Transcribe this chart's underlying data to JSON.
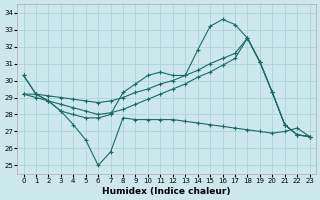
{
  "xlabel": "Humidex (Indice chaleur)",
  "bg_color": "#cce8ec",
  "grid_color": "#b0d8dc",
  "line_color": "#1a6b62",
  "xlim": [
    -0.5,
    23.5
  ],
  "ylim": [
    24.5,
    34.5
  ],
  "yticks": [
    25,
    26,
    27,
    28,
    29,
    30,
    31,
    32,
    33,
    34
  ],
  "xticks": [
    0,
    1,
    2,
    3,
    4,
    5,
    6,
    7,
    8,
    9,
    10,
    11,
    12,
    13,
    14,
    15,
    16,
    17,
    18,
    19,
    20,
    21,
    22,
    23
  ],
  "curves": [
    {
      "x": [
        0,
        1,
        2,
        3,
        4,
        5,
        6,
        7,
        8,
        9,
        10,
        11,
        12,
        13,
        14,
        15,
        16,
        17,
        18,
        19,
        20,
        21,
        22,
        23
      ],
      "y": [
        30.3,
        29.2,
        28.8,
        28.2,
        27.4,
        26.5,
        25.0,
        25.8,
        27.8,
        27.7,
        27.7,
        27.7,
        27.7,
        27.6,
        27.5,
        27.4,
        27.3,
        27.2,
        27.1,
        27.0,
        26.9,
        27.0,
        27.2,
        26.7
      ]
    },
    {
      "x": [
        0,
        1,
        2,
        3,
        4,
        5,
        6,
        7,
        8,
        9,
        10,
        11,
        12,
        13,
        14,
        15,
        16,
        17,
        18,
        19,
        20,
        21,
        22,
        23
      ],
      "y": [
        30.3,
        29.2,
        28.8,
        28.2,
        28.0,
        27.8,
        27.8,
        28.0,
        29.3,
        29.8,
        30.3,
        30.5,
        30.3,
        30.3,
        31.8,
        33.2,
        33.6,
        33.3,
        32.5,
        31.1,
        29.3,
        27.4,
        26.8,
        26.7
      ]
    },
    {
      "x": [
        0,
        1,
        2,
        3,
        4,
        5,
        6,
        7,
        8,
        9,
        10,
        11,
        12,
        13,
        14,
        15,
        16,
        17,
        18,
        19,
        20,
        21,
        22,
        23
      ],
      "y": [
        29.2,
        29.2,
        29.1,
        29.0,
        28.9,
        28.8,
        28.7,
        28.8,
        29.0,
        29.3,
        29.5,
        29.8,
        30.0,
        30.3,
        30.6,
        31.0,
        31.3,
        31.6,
        32.5,
        31.1,
        29.3,
        27.4,
        26.8,
        26.7
      ]
    },
    {
      "x": [
        0,
        1,
        2,
        3,
        4,
        5,
        6,
        7,
        8,
        9,
        10,
        11,
        12,
        13,
        14,
        15,
        16,
        17,
        18,
        19,
        20,
        21,
        22,
        23
      ],
      "y": [
        29.2,
        29.0,
        28.8,
        28.6,
        28.4,
        28.2,
        28.0,
        28.1,
        28.3,
        28.6,
        28.9,
        29.2,
        29.5,
        29.8,
        30.2,
        30.5,
        30.9,
        31.3,
        32.5,
        31.1,
        29.3,
        27.4,
        26.8,
        26.7
      ]
    }
  ]
}
